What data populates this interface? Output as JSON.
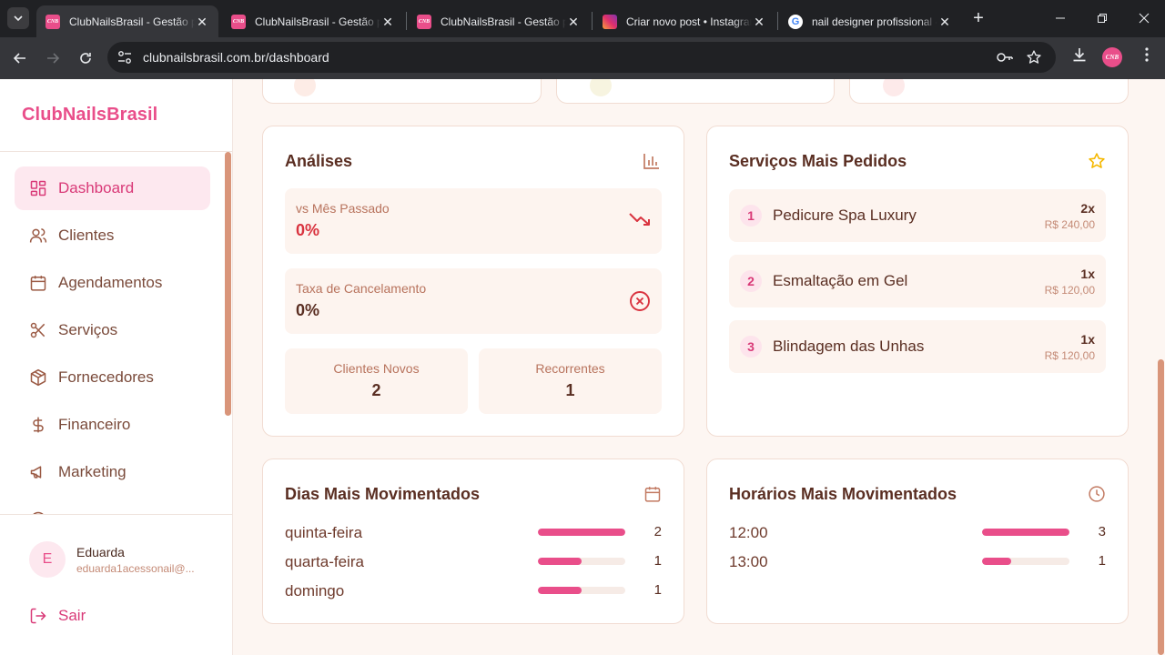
{
  "browser": {
    "tabs": [
      {
        "title": "ClubNailsBrasil - Gestão para Manicures",
        "favicon": "cnb-logo-icon",
        "active": true
      },
      {
        "title": "ClubNailsBrasil - Gestão para Manicures",
        "favicon": "cnb-logo-icon",
        "active": false
      },
      {
        "title": "ClubNailsBrasil - Gestão para Manicures",
        "favicon": "cnb-logo-icon",
        "active": false
      },
      {
        "title": "Criar novo post • Instagram",
        "favicon": "instagram-icon",
        "active": false
      },
      {
        "title": "nail designer profissional - Pesquisa Google",
        "favicon": "google-icon",
        "active": false
      }
    ],
    "favicon_text": {
      "cnb": "CNB",
      "google": "G"
    },
    "url": "clubnailsbrasil.com.br/dashboard",
    "profile_initials": "CNB"
  },
  "sidebar": {
    "brand": "ClubNailsBrasil",
    "items": [
      {
        "label": "Dashboard",
        "icon": "dashboard-grid-icon",
        "active": true
      },
      {
        "label": "Clientes",
        "icon": "users-icon"
      },
      {
        "label": "Agendamentos",
        "icon": "calendar-icon"
      },
      {
        "label": "Serviços",
        "icon": "scissors-icon"
      },
      {
        "label": "Fornecedores",
        "icon": "package-icon"
      },
      {
        "label": "Financeiro",
        "icon": "dollar-icon"
      },
      {
        "label": "Marketing",
        "icon": "megaphone-icon"
      }
    ],
    "user": {
      "initial": "E",
      "name": "Eduarda",
      "email": "eduarda1acessonail@..."
    },
    "logout": "Sair"
  },
  "analises": {
    "title": "Análises",
    "vs_mes_passado": {
      "label": "vs Mês Passado",
      "value": "0%"
    },
    "taxa_cancelamento": {
      "label": "Taxa de Cancelamento",
      "value": "0%"
    },
    "clientes_novos": {
      "label": "Clientes Novos",
      "value": "2"
    },
    "recorrentes": {
      "label": "Recorrentes",
      "value": "1"
    }
  },
  "servicos": {
    "title": "Serviços Mais Pedidos",
    "items": [
      {
        "rank": "1",
        "name": "Pedicure Spa Luxury",
        "count": "2x",
        "price": "R$ 240,00"
      },
      {
        "rank": "2",
        "name": "Esmaltação em Gel",
        "count": "1x",
        "price": "R$ 120,00"
      },
      {
        "rank": "3",
        "name": "Blindagem das Unhas",
        "count": "1x",
        "price": "R$ 120,00"
      }
    ]
  },
  "dias": {
    "title": "Dias Mais Movimentados",
    "rows": [
      {
        "label": "quinta-feira",
        "count": "2",
        "fraction": 1.0
      },
      {
        "label": "quarta-feira",
        "count": "1",
        "fraction": 0.5
      },
      {
        "label": "domingo",
        "count": "1",
        "fraction": 0.5
      }
    ]
  },
  "horarios": {
    "title": "Horários Mais Movimentados",
    "rows": [
      {
        "label": "12:00",
        "count": "3",
        "fraction": 1.0
      },
      {
        "label": "13:00",
        "count": "1",
        "fraction": 0.333
      }
    ]
  },
  "colors": {
    "brand": "#e94e8a",
    "danger": "#d9333f",
    "star": "#f5b800",
    "text": "#5a2e22"
  }
}
